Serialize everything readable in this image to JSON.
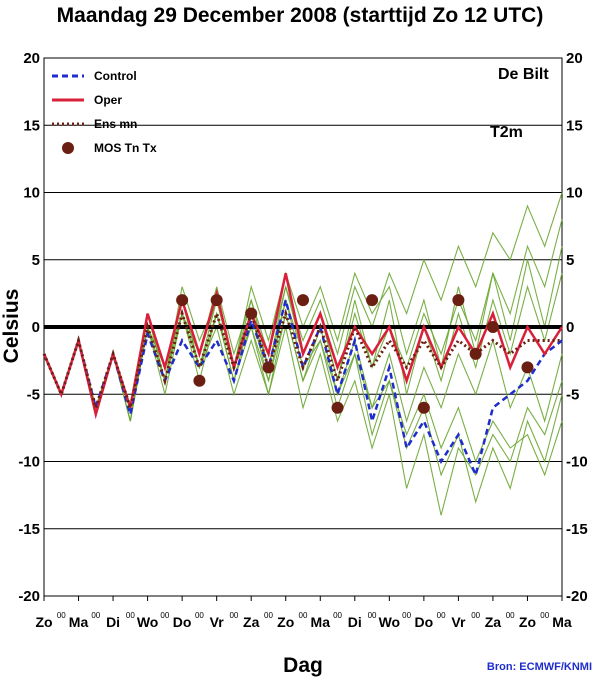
{
  "chart_data": {
    "type": "line",
    "title": "Maandag   29 December  2008  (starttijd  Zo 12 UTC)",
    "ylabel": "Celsius",
    "xlabel": "Dag",
    "ylim": [
      -20,
      20
    ],
    "yticks": [
      20,
      15,
      10,
      5,
      0,
      -5,
      -10,
      -15,
      -20
    ],
    "grid": "horizontal at 0, ±5, ±10, ±15",
    "legend_position": "top-left",
    "location_label": "De Bilt",
    "variable_label": "T2m",
    "source": "Bron: ECMWF/KNMI",
    "day_labels": [
      "Zo",
      "Ma",
      "Di",
      "Wo",
      "Do",
      "Vr",
      "Za",
      "Zo",
      "Ma",
      "Di",
      "Wo",
      "Do",
      "Vr",
      "Za",
      "Zo",
      "Ma"
    ],
    "hour_label": "00",
    "x_hours": [
      0,
      12,
      24,
      36,
      48,
      60,
      72,
      84,
      96,
      108,
      120,
      132,
      144,
      156,
      168,
      180,
      192,
      204,
      216,
      228,
      240,
      252,
      264,
      276,
      288,
      300,
      312,
      324,
      336,
      348,
      360
    ],
    "series": [
      {
        "name": "Control",
        "color": "#1f2dcc",
        "style": "dashed",
        "values": [
          -2,
          -5,
          -1,
          -6,
          -2,
          -6.5,
          -0.5,
          -4,
          -1,
          -3,
          -1,
          -4,
          0.5,
          -3,
          2,
          -3,
          0,
          -5,
          -1,
          -7,
          -3,
          -9,
          -7,
          -10,
          -8,
          -11,
          -6,
          -5,
          -4,
          -2,
          -1
        ]
      },
      {
        "name": "Oper",
        "color": "#d8203a",
        "style": "solid",
        "values": [
          -2,
          -5,
          -1,
          -6.5,
          -2,
          -6,
          1,
          -3,
          2,
          -2,
          2.5,
          -3,
          1,
          -2,
          4,
          -2,
          1,
          -3,
          0,
          -2,
          0,
          -4,
          0,
          -3,
          0,
          -2,
          1,
          -3,
          0,
          -2,
          0
        ]
      },
      {
        "name": "Ens mn",
        "color": "#6b1f12",
        "style": "dotted",
        "values": [
          -2,
          -5,
          -1,
          -6,
          -2,
          -6,
          0,
          -4,
          1,
          -3,
          1,
          -3,
          1,
          -3,
          1,
          -3,
          0,
          -4,
          0,
          -3,
          -1,
          -3,
          -1,
          -3,
          -1,
          -2,
          -1,
          -2,
          -1,
          -1,
          -1
        ]
      },
      {
        "name": "MOS Tn Tx",
        "color": "#6b1f12",
        "style": "markers",
        "x": [
          96,
          120,
          108,
          144,
          156,
          180,
          204,
          228,
          264,
          288,
          300,
          312,
          336
        ],
        "values": [
          2,
          2,
          -4,
          1,
          -3,
          2,
          -6,
          2,
          -6,
          2,
          -2,
          0,
          -3
        ]
      }
    ],
    "ensemble": {
      "color": "#6aa632",
      "members": [
        [
          -2,
          -5,
          -1,
          -6,
          -2,
          -7,
          0,
          -4,
          1,
          -3,
          2,
          -3,
          1,
          -3,
          2,
          -2,
          1,
          -4,
          1,
          -3,
          0,
          -3,
          1,
          -2,
          2,
          -1,
          4,
          1,
          6,
          3,
          8
        ],
        [
          -2,
          -5,
          -1,
          -6,
          -2,
          -6,
          1,
          -4,
          2,
          -3,
          1,
          -4,
          0,
          -4,
          1,
          -4,
          -1,
          -6,
          -2,
          -8,
          -4,
          -9,
          -6,
          -11,
          -8,
          -13,
          -9,
          -12,
          -7,
          -10,
          -5
        ],
        [
          -2,
          -5,
          -1,
          -6,
          -2,
          -7,
          0,
          -5,
          1,
          -2,
          3,
          -2,
          2,
          -2,
          3,
          -1,
          2,
          -2,
          3,
          0,
          4,
          1,
          5,
          2,
          6,
          3,
          7,
          5,
          9,
          6,
          10
        ],
        [
          -2,
          -5,
          -1,
          -6,
          -2,
          -6,
          0,
          -3,
          2,
          -3,
          0,
          -5,
          -1,
          -5,
          0,
          -6,
          -2,
          -7,
          -4,
          -9,
          -5,
          -12,
          -8,
          -14,
          -9,
          -11,
          -8,
          -10,
          -6,
          -8,
          -4
        ],
        [
          -2,
          -5,
          -1,
          -6,
          -2,
          -7,
          1,
          -4,
          3,
          -1,
          2,
          -3,
          3,
          -1,
          4,
          0,
          3,
          -1,
          4,
          1,
          3,
          -2,
          2,
          -3,
          3,
          -2,
          4,
          -1,
          5,
          0,
          6
        ],
        [
          -2,
          -5,
          -1,
          -6,
          -2,
          -6,
          0,
          -4,
          1,
          -4,
          1,
          -3,
          0,
          -5,
          1,
          -4,
          0,
          -5,
          -1,
          -6,
          -2,
          -7,
          -3,
          -6,
          -2,
          -5,
          -1,
          -6,
          -3,
          -7,
          -2
        ],
        [
          -2,
          -5,
          -1,
          -6,
          -2,
          -7,
          0,
          -4,
          2,
          -2,
          2,
          -3,
          2,
          -3,
          3,
          -2,
          1,
          -4,
          2,
          -3,
          2,
          -5,
          0,
          -4,
          1,
          -3,
          2,
          -2,
          3,
          -1,
          4
        ],
        [
          -2,
          -5,
          -1,
          -6,
          -2,
          -6,
          1,
          -3,
          1,
          -3,
          1,
          -4,
          1,
          -4,
          2,
          -3,
          -1,
          -5,
          -2,
          -6,
          -4,
          -8,
          -5,
          -9,
          -6,
          -10,
          -7,
          -9,
          -8,
          -11,
          -7
        ]
      ]
    }
  },
  "legend": [
    {
      "label": "Control",
      "style": "dashed",
      "color": "#1f2dcc"
    },
    {
      "label": "Oper",
      "style": "solid",
      "color": "#d8203a"
    },
    {
      "label": "Ens mn",
      "style": "dotted",
      "color": "#6b1f12"
    },
    {
      "label": "MOS Tn Tx",
      "style": "markers",
      "color": "#6b1f12"
    }
  ]
}
